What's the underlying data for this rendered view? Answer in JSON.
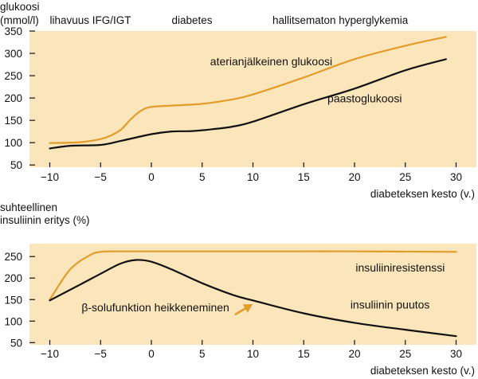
{
  "chart_data": [
    {
      "type": "line",
      "ylabel_lines": [
        "glukoosi",
        "(mmol/l)"
      ],
      "xlabel": "diabeteksen kesto (v.)",
      "xlim": [
        -12,
        32
      ],
      "ylim": [
        45,
        350
      ],
      "x_ticks": [
        -10,
        -5,
        0,
        5,
        10,
        15,
        20,
        25,
        30
      ],
      "x_tick_labels": [
        "−10",
        "−5",
        "0",
        "5",
        "10",
        "15",
        "20",
        "25",
        "30"
      ],
      "y_ticks": [
        50,
        100,
        150,
        200,
        250,
        300,
        350
      ],
      "y_tick_labels": [
        "50",
        "100",
        "150",
        "200",
        "250",
        "300",
        "350"
      ],
      "grid": false,
      "stage_labels": [
        {
          "text": "lihavuus IFG/IGT",
          "x": -6
        },
        {
          "text": "diabetes",
          "x": 4
        },
        {
          "text": "hallitsematon hyperglykemia",
          "x": 18.6
        }
      ],
      "series": [
        {
          "name": "aterianjälkeinen glukoosi",
          "color": "#e39b2a",
          "x": [
            -10,
            -7,
            -5,
            -4,
            -3,
            -2,
            -1,
            0,
            2,
            5,
            8,
            10,
            15,
            20,
            25,
            29
          ],
          "y": [
            99,
            101,
            108,
            116,
            129,
            153,
            172,
            180,
            183,
            187,
            197,
            208,
            246,
            287,
            317,
            337
          ]
        },
        {
          "name": "paastoglukoosi",
          "color": "#111111",
          "x": [
            -10,
            -8,
            -5,
            -3,
            0,
            2,
            4,
            6,
            8,
            10,
            15,
            20,
            25,
            29
          ],
          "y": [
            87,
            93,
            95,
            104,
            119,
            125,
            126,
            130,
            136,
            147,
            186,
            221,
            262,
            287
          ]
        }
      ],
      "annotations": [
        {
          "text": "aterianjälkeinen glukoosi",
          "x": 11.8,
          "y": 273
        },
        {
          "text": "paastoglukoosi",
          "x": 21,
          "y": 190
        }
      ]
    },
    {
      "type": "line",
      "ylabel_lines": [
        "suhteellinen",
        "insuliinin eritys (%)"
      ],
      "xlabel": "diabeteksen kesto (v.)",
      "xlim": [
        -12,
        32
      ],
      "ylim": [
        45,
        280
      ],
      "x_ticks": [
        -10,
        -5,
        0,
        5,
        10,
        15,
        20,
        25,
        30
      ],
      "x_tick_labels": [
        "−10",
        "−5",
        "0",
        "5",
        "10",
        "15",
        "20",
        "25",
        "30"
      ],
      "y_ticks": [
        50,
        100,
        150,
        200,
        250
      ],
      "y_tick_labels": [
        "50",
        "100",
        "150",
        "200",
        "250"
      ],
      "grid": false,
      "series": [
        {
          "name": "insuliiniresistenssi",
          "color": "#e39b2a",
          "x": [
            -10,
            -8,
            -6,
            -5,
            -4,
            0,
            10,
            20,
            30
          ],
          "y": [
            150,
            220,
            254,
            261,
            262,
            262,
            262,
            262,
            261
          ]
        },
        {
          "name": "insuliinin puutos",
          "color": "#111111",
          "x": [
            -10,
            -7,
            -5,
            -3,
            -1.5,
            0,
            2,
            5,
            8,
            10,
            15,
            20,
            25,
            30
          ],
          "y": [
            148,
            185,
            210,
            234,
            242,
            238,
            220,
            188,
            161,
            148,
            118,
            96,
            80,
            65
          ]
        }
      ],
      "annotations": [
        {
          "text": "insuliiniresistenssi",
          "x": 24.5,
          "y": 215
        },
        {
          "text": "insuliinin puutos",
          "x": 23.5,
          "y": 129
        },
        {
          "text": "β-solufunktion heikkeneminen",
          "x": 0.4,
          "y": 123
        }
      ]
    }
  ]
}
